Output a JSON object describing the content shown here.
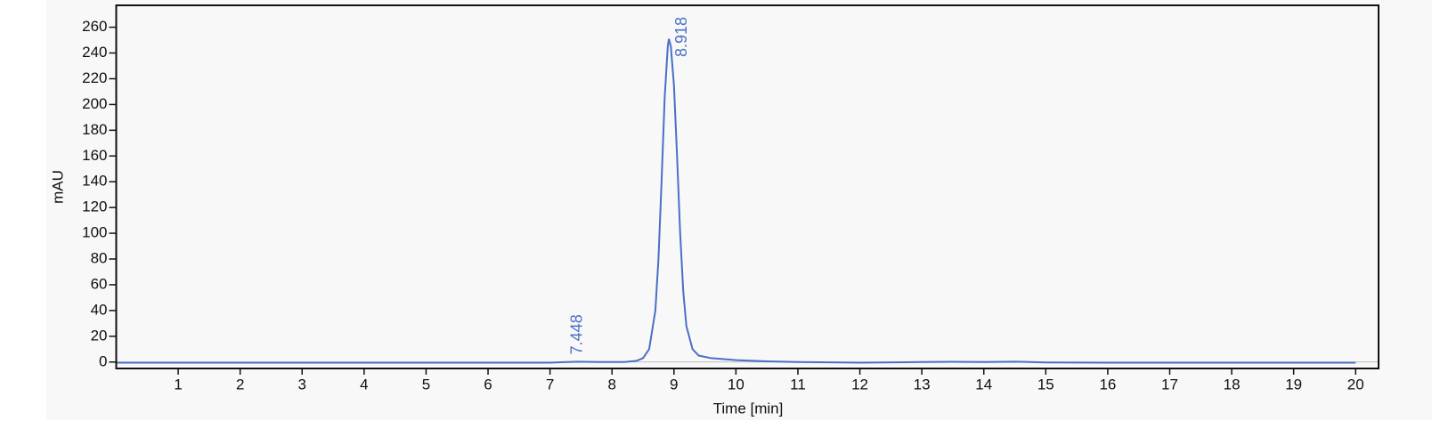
{
  "chart_data": {
    "type": "line",
    "x_label": "Time [min]",
    "y_label": "mAU",
    "x": [
      0,
      1,
      2,
      3,
      4,
      5,
      6,
      7,
      7.448,
      7.8,
      8.2,
      8.4,
      8.5,
      8.6,
      8.7,
      8.75,
      8.8,
      8.85,
      8.9,
      8.918,
      8.95,
      9.0,
      9.05,
      9.1,
      9.15,
      9.2,
      9.3,
      9.4,
      9.6,
      10,
      10.5,
      11,
      12,
      13,
      13.5,
      14,
      14.5,
      15,
      16,
      17,
      18,
      19,
      20
    ],
    "series": [
      {
        "color": "#4a6fc7",
        "values": [
          -0.5,
          -0.5,
          -0.5,
          -0.5,
          -0.5,
          -0.5,
          -0.5,
          -0.5,
          0.3,
          0,
          0,
          1,
          3,
          10,
          40,
          80,
          140,
          205,
          245,
          251,
          245,
          215,
          160,
          100,
          55,
          28,
          10,
          5,
          3,
          1.5,
          0.5,
          0,
          -0.5,
          0,
          0.2,
          0,
          0.3,
          -0.3,
          -0.5,
          -0.5,
          -0.5,
          -0.5,
          -0.5
        ]
      }
    ],
    "peak_labels": [
      7.448,
      8.918
    ],
    "xlim": [
      0,
      20.37
    ],
    "ylim": [
      -5,
      277
    ],
    "xticks": [
      1,
      2,
      3,
      4,
      5,
      6,
      7,
      8,
      9,
      10,
      11,
      12,
      13,
      14,
      15,
      16,
      17,
      18,
      19,
      20
    ],
    "yticks": [
      0,
      20,
      40,
      60,
      80,
      100,
      120,
      140,
      160,
      180,
      200,
      220,
      240,
      260
    ]
  }
}
